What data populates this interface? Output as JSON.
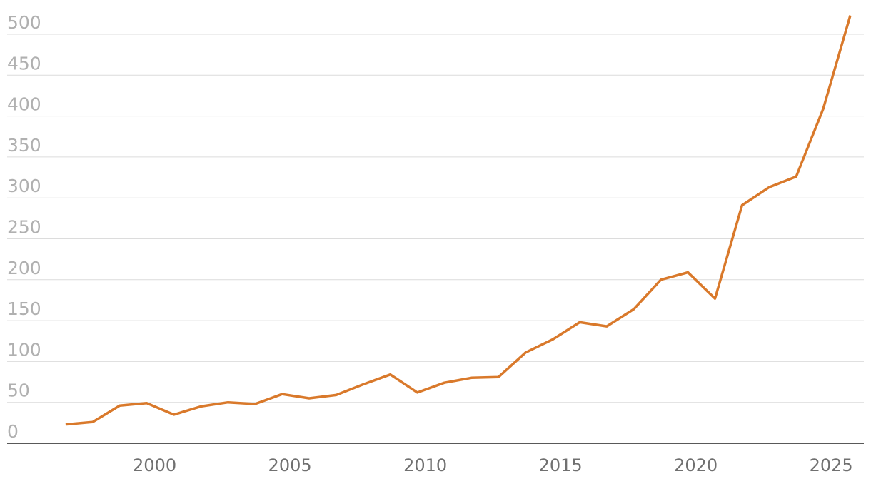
{
  "chart_data": {
    "type": "line",
    "x": [
      1997,
      1998,
      1999,
      2000,
      2001,
      2002,
      2003,
      2004,
      2005,
      2006,
      2007,
      2008,
      2009,
      2010,
      2011,
      2012,
      2013,
      2014,
      2015,
      2016,
      2017,
      2018,
      2019,
      2020,
      2021,
      2022,
      2023,
      2024,
      2025,
      2026
    ],
    "series": [
      {
        "color": "#d9792b",
        "values": [
          23,
          26,
          46,
          49,
          35,
          45,
          50,
          48,
          60,
          55,
          59,
          72,
          84,
          62,
          74,
          80,
          81,
          111,
          127,
          148,
          143,
          164,
          200,
          209,
          177,
          291,
          313,
          326,
          409,
          523
        ]
      }
    ],
    "xlim": [
      1994.84,
      2026.5
    ],
    "xticks": [
      2000,
      2005,
      2010,
      2015,
      2020,
      2025
    ],
    "ylim": [
      0,
      530
    ],
    "yticks": [
      0,
      50,
      100,
      150,
      200,
      250,
      300,
      350,
      400,
      450,
      500
    ],
    "grid": true
  }
}
